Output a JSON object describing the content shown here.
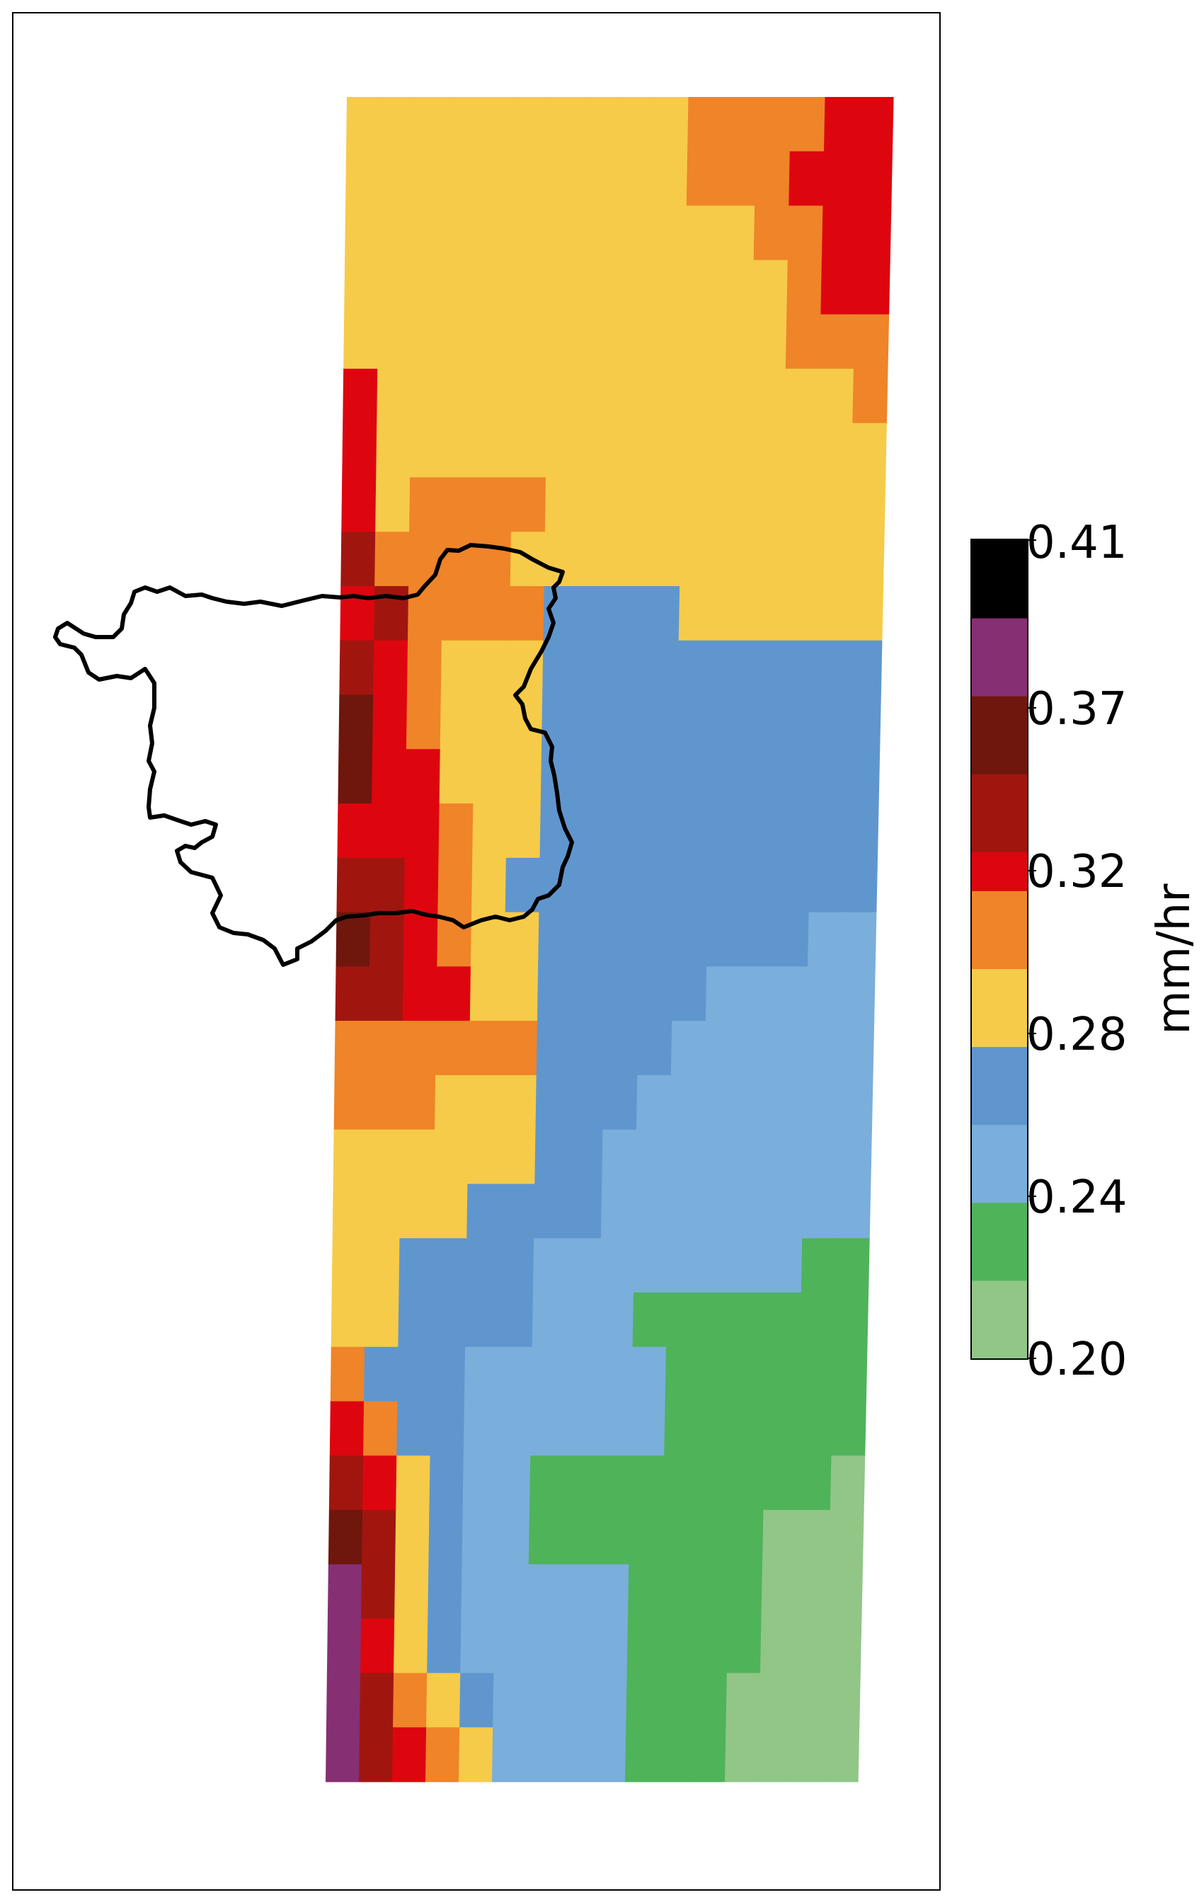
{
  "colorbar": {
    "label": "mm/hr",
    "ticks": [
      "0.41",
      "0.37",
      "0.32",
      "0.28",
      "0.24",
      "0.20"
    ],
    "bins": [
      {
        "min": 0.2,
        "max": 0.22,
        "color": "#91c687"
      },
      {
        "min": 0.22,
        "max": 0.24,
        "color": "#4fb35a"
      },
      {
        "min": 0.24,
        "max": 0.26,
        "color": "#7aaedb"
      },
      {
        "min": 0.26,
        "max": 0.28,
        "color": "#6096ce"
      },
      {
        "min": 0.28,
        "max": 0.3,
        "color": "#f6cb49"
      },
      {
        "min": 0.3,
        "max": 0.32,
        "color": "#ef8429"
      },
      {
        "min": 0.32,
        "max": 0.33,
        "color": "#dd060f"
      },
      {
        "min": 0.33,
        "max": 0.35,
        "color": "#a0160f"
      },
      {
        "min": 0.35,
        "max": 0.37,
        "color": "#6f160d"
      },
      {
        "min": 0.37,
        "max": 0.39,
        "color": "#862f73"
      },
      {
        "min": 0.39,
        "max": 0.41,
        "color": "#000000"
      }
    ]
  }
}
